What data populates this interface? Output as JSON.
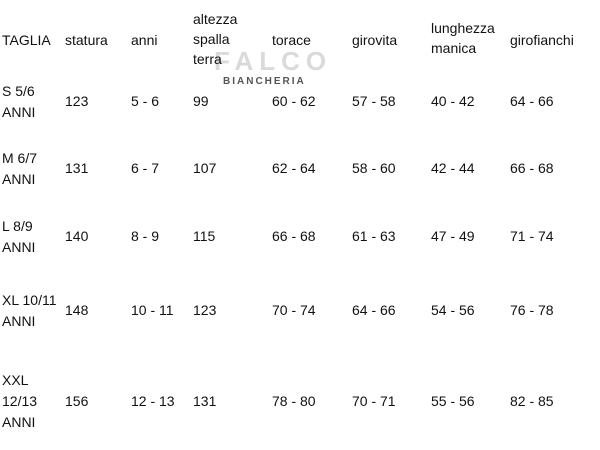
{
  "table": {
    "header": [
      [
        "TAGLIA"
      ],
      [
        "statura"
      ],
      [
        "anni"
      ],
      [
        "altezza",
        "spalla",
        "terra"
      ],
      [
        "torace"
      ],
      [
        "girovita"
      ],
      [
        "lunghezza",
        "manica"
      ],
      [
        "girofianchi"
      ]
    ],
    "rows": [
      {
        "size": [
          "S 5/6",
          "ANNI"
        ],
        "values": [
          "123",
          "5 - 6",
          "99",
          "60 - 62",
          "57 - 58",
          "40 - 42",
          "64 - 66"
        ]
      },
      {
        "size": [
          "M 6/7",
          "ANNI"
        ],
        "values": [
          "131",
          "6 - 7",
          "107",
          "62 - 64",
          "58 - 60",
          "42 - 44",
          "66 - 68"
        ]
      },
      {
        "size": [
          "L 8/9",
          "ANNI"
        ],
        "values": [
          "140",
          "8 - 9",
          "115",
          "66 - 68",
          "61 - 63",
          "47 - 49",
          "71 - 74"
        ]
      },
      {
        "size": [
          "XL 10/11",
          "ANNI"
        ],
        "values": [
          "148",
          "10 - 11",
          "123",
          "70 - 74",
          "64 - 66",
          "54 - 56",
          "76 - 78"
        ]
      },
      {
        "size": [
          "XXL",
          "12/13",
          "ANNI"
        ],
        "values": [
          "156",
          "12 - 13",
          "131",
          "78 - 80",
          "70 - 71",
          "55 - 56",
          "82 - 85"
        ]
      }
    ]
  },
  "logo": {
    "name": "FALCO",
    "tagline": "BIANCHERIA"
  }
}
